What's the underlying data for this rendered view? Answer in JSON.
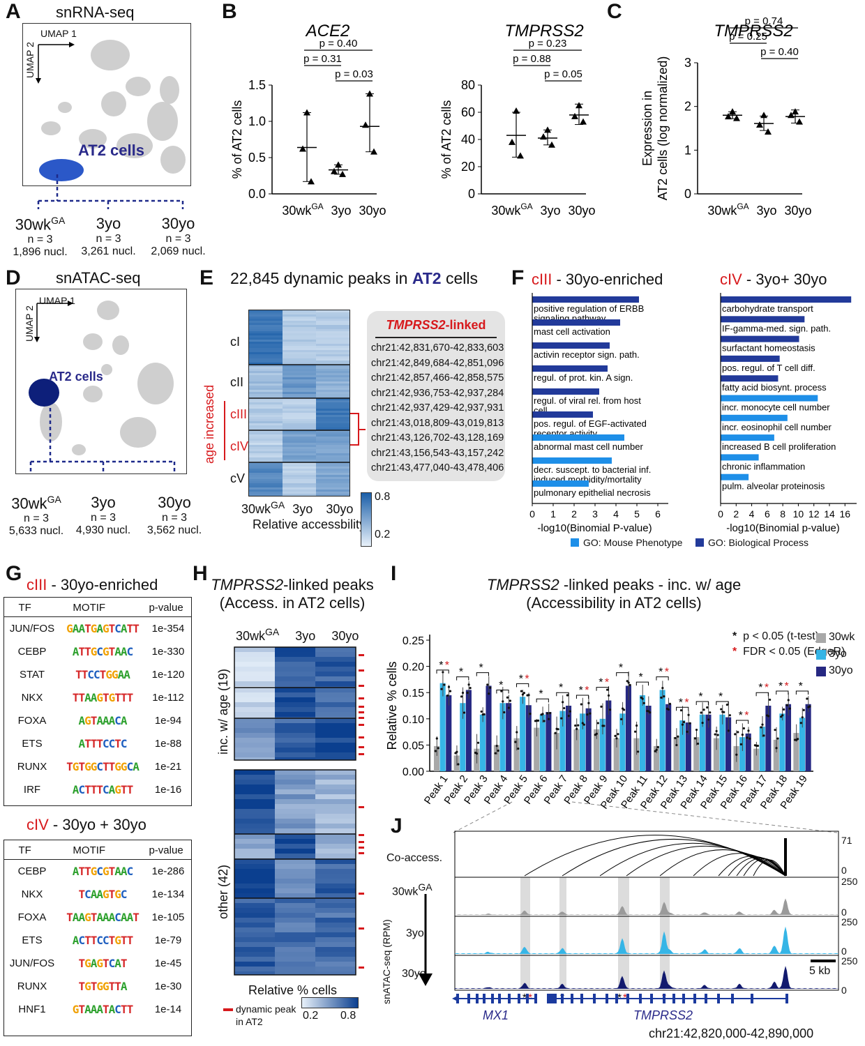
{
  "panels": {
    "A": {
      "label": "A",
      "title": "snRNA-seq",
      "umap1": "UMAP 1",
      "umap2": "UMAP 2",
      "cluster": "AT2 cells",
      "groups": [
        {
          "name": "30wk",
          "sup": "GA",
          "n": "n = 3",
          "nucl": "1,896 nucl."
        },
        {
          "name": "3yo",
          "sup": "",
          "n": "n = 3",
          "nucl": "3,261 nucl."
        },
        {
          "name": "30yo",
          "sup": "",
          "n": "n = 3",
          "nucl": "2,069 nucl."
        }
      ]
    },
    "B": {
      "label": "B"
    },
    "C": {
      "label": "C"
    },
    "D": {
      "label": "D",
      "title": "snATAC-seq",
      "umap1": "UMAP 1",
      "umap2": "UMAP 2",
      "cluster": "AT2 cells",
      "groups": [
        {
          "name": "30wk",
          "sup": "GA",
          "n": "n = 3",
          "nucl": "5,633 nucl."
        },
        {
          "name": "3yo",
          "sup": "",
          "n": "n = 3",
          "nucl": "4,930 nucl."
        },
        {
          "name": "30yo",
          "sup": "",
          "n": "n = 3",
          "nucl": "3,562 nucl."
        }
      ]
    },
    "E": {
      "label": "E",
      "title_pre": "22,845 dynamic peaks in ",
      "title_bold": "AT2",
      "title_post": " cells",
      "clusters": [
        "cI",
        "cII",
        "cIII",
        "cIV",
        "cV"
      ],
      "age_label": "age increased",
      "xlabels": [
        "30wk",
        "3yo",
        "30yo"
      ],
      "xsup": "GA",
      "xlabel": "Relative accessbility",
      "legend": {
        "max": "0.8",
        "min": "0.2"
      },
      "linked_title_gene": "TMPRSS2",
      "linked_title_suffix": "-linked",
      "linked_peaks": [
        "chr21:42,831,670-42,833,603",
        "chr21:42,849,684-42,851,096",
        "chr21:42,857,466-42,858,575",
        "chr21:42,936,753-42,937,284",
        "chr21:42,937,429-42,937,931",
        "chr21:43,018,809-43,019,813",
        "chr21:43,126,702-43,128,169",
        "chr21:43,156,543-43,157,242",
        "chr21:43,477,040-43,478,406"
      ]
    },
    "F": {
      "label": "F",
      "left": {
        "title_red": "cIII",
        "title_rest": " - 30yo-enriched",
        "xlabel": "-log10(Binomial P-value)",
        "terms": [
          {
            "t": "positive regulation of ERBB signaling pathway",
            "v": 5.1,
            "type": "BP"
          },
          {
            "t": "mast cell activation",
            "v": 4.2,
            "type": "BP"
          },
          {
            "t": "activin receptor sign. path.",
            "v": 3.7,
            "type": "BP"
          },
          {
            "t": "regul. of prot. kin. A sign.",
            "v": 3.6,
            "type": "BP"
          },
          {
            "t": "regul. of viral rel. from host cell",
            "v": 3.2,
            "type": "BP"
          },
          {
            "t": "pos. regul. of EGF-activated receptor activity",
            "v": 2.9,
            "type": "BP"
          },
          {
            "t": "abnormal mast cell number",
            "v": 4.4,
            "type": "MP"
          },
          {
            "t": "decr. suscept. to bacterial inf. induced morbidity/mortality",
            "v": 3.8,
            "type": "MP"
          },
          {
            "t": "pulmonary epithelial necrosis",
            "v": 2.7,
            "type": "MP"
          }
        ],
        "ticks": [
          "0",
          "1",
          "2",
          "3",
          "4",
          "5",
          "6"
        ]
      },
      "right": {
        "title_red": "cIV",
        "title_rest": " - 3yo+ 30yo",
        "xlabel": "-log10(Binomial p-value)",
        "terms": [
          {
            "t": "carbohydrate transport",
            "v": 16.8,
            "type": "BP"
          },
          {
            "t": "IF-gamma-med. sign. path.",
            "v": 10.8,
            "type": "BP"
          },
          {
            "t": "surfactant homeostasis",
            "v": 10.1,
            "type": "BP"
          },
          {
            "t": "pos. regul. of T cell diff.",
            "v": 7.6,
            "type": "BP"
          },
          {
            "t": "fatty acid biosynt. process",
            "v": 7.4,
            "type": "BP"
          },
          {
            "t": "incr. monocyte cell number",
            "v": 12.5,
            "type": "MP"
          },
          {
            "t": "incr. eosinophil cell number",
            "v": 8.6,
            "type": "MP"
          },
          {
            "t": "increased B cell proliferation",
            "v": 6.9,
            "type": "MP"
          },
          {
            "t": "chronic inflammation",
            "v": 4.9,
            "type": "MP"
          },
          {
            "t": "pulm. alveolar proteinosis",
            "v": 3.6,
            "type": "MP"
          }
        ],
        "ticks": [
          "0",
          "2",
          "4",
          "6",
          "8",
          "10",
          "12",
          "14",
          "16"
        ]
      },
      "legend": {
        "mp": "GO: Mouse Phenotype",
        "bp": "GO: Biological Process"
      }
    },
    "G": {
      "label": "G",
      "t1_red": "cIII",
      "t1_rest": " - 30yo-enriched",
      "t2_red": "cIV",
      "t2_rest": " - 30yo + 30yo",
      "headers": [
        "TF",
        "MOTIF",
        "p-value"
      ],
      "rows1": [
        {
          "tf": "JUN/FOS",
          "motif": "GAATGAGTCATT",
          "p": "1e-354"
        },
        {
          "tf": "CEBP",
          "motif": "ATTGCGTAAC",
          "p": "1e-330"
        },
        {
          "tf": "STAT",
          "motif": "TTCCTGGAA",
          "p": "1e-120"
        },
        {
          "tf": "NKX",
          "motif": "TTAAGTGTTT",
          "p": "1e-112"
        },
        {
          "tf": "FOXA",
          "motif": "AGTAAACA",
          "p": "1e-94"
        },
        {
          "tf": "ETS",
          "motif": "ATTTCCTC",
          "p": "1e-88"
        },
        {
          "tf": "RUNX",
          "motif": "TGTGGCTTGGCA",
          "p": "1e-21"
        },
        {
          "tf": "IRF",
          "motif": "ACTTTCAGTT",
          "p": "1e-16"
        }
      ],
      "rows2": [
        {
          "tf": "CEBP",
          "motif": "ATTGCGTAAC",
          "p": "1e-286"
        },
        {
          "tf": "NKX",
          "motif": "TCAAGTGC",
          "p": "1e-134"
        },
        {
          "tf": "FOXA",
          "motif": "TAAGTAAACAAT",
          "p": "1e-105"
        },
        {
          "tf": "ETS",
          "motif": "ACTTCCTGTT",
          "p": "1e-79"
        },
        {
          "tf": "JUN/FOS",
          "motif": "TGAGTCAT",
          "p": "1e-45"
        },
        {
          "tf": "RUNX",
          "motif": "TGTGGTTA",
          "p": "1e-30"
        },
        {
          "tf": "HNF1",
          "motif": "GTAAATACTT",
          "p": "1e-14"
        }
      ]
    },
    "H": {
      "label": "H",
      "title_gene": "TMPRSS2",
      "title_rest": "-linked peaks",
      "subtitle": "(Access. in AT2 cells)",
      "cols": [
        "30wk",
        "3yo",
        "30yo"
      ],
      "colsup": "GA",
      "group1": "inc. w/ age (19)",
      "group2": "other (42)",
      "xlabel": "Relative % cells",
      "legend_dyn": "dynamic peak in AT2",
      "legend_min": "0.2",
      "legend_max": "0.8"
    },
    "I": {
      "label": "I",
      "title_gene": "TMPRSS2",
      "title_rest": " -linked peaks - inc. w/ age",
      "subtitle": "(Accessibility in AT2 cells)",
      "ylabel": "Relative % cells",
      "legend": {
        "ttest": "p < 0.05 (t-test)",
        "fdr": "FDR < 0.05 (EdgeR)",
        "s1": "30wk",
        "s2": "3yo",
        "s3": "30yo"
      }
    },
    "J": {
      "label": "J",
      "coaccess": "Co-access.",
      "ylabel": "snATAC-seq (RPM)",
      "tracks": [
        "30wk",
        "3yo",
        "30yo"
      ],
      "tracksup": "GA",
      "scale_top": "71",
      "scale_zero": "0",
      "scale_max": "250",
      "scalebar": "5 kb",
      "gene1": "MX1",
      "gene2": "TMPRSS2",
      "coords": "chr21:42,820,000-42,890,000"
    }
  },
  "chart_data": [
    {
      "type": "scatter",
      "title": "ACE2",
      "ylabel": "% of AT2 cells",
      "categories": [
        "30wkGA",
        "3yo",
        "30yo"
      ],
      "ylim": [
        0,
        1.5
      ],
      "points": [
        [
          1.12,
          0.62,
          0.17
        ],
        [
          0.4,
          0.31,
          0.27
        ],
        [
          1.38,
          0.95,
          0.58
        ]
      ],
      "means": [
        0.64,
        0.33,
        0.93
      ],
      "sd_low": [
        0.17,
        0.27,
        0.58
      ],
      "sd_high": [
        1.12,
        0.4,
        1.38
      ],
      "pvalues": [
        {
          "a": 0,
          "b": 1,
          "p": "p = 0.31"
        },
        {
          "a": 0,
          "b": 2,
          "p": "p = 0.40"
        },
        {
          "a": 1,
          "b": 2,
          "p": "p = 0.03"
        }
      ]
    },
    {
      "type": "scatter",
      "title": "TMPRSS2",
      "ylabel": "% of AT2 cells",
      "categories": [
        "30wkGA",
        "3yo",
        "30yo"
      ],
      "ylim": [
        0,
        80
      ],
      "points": [
        [
          61,
          38,
          28
        ],
        [
          47,
          42,
          36
        ],
        [
          65,
          57,
          53
        ]
      ],
      "means": [
        43,
        41,
        58
      ],
      "sd_low": [
        27,
        36,
        51
      ],
      "sd_high": [
        60,
        47,
        66
      ],
      "pvalues": [
        {
          "a": 0,
          "b": 1,
          "p": "p = 0.88"
        },
        {
          "a": 0,
          "b": 2,
          "p": "p = 0.23"
        },
        {
          "a": 1,
          "b": 2,
          "p": "p = 0.05"
        }
      ]
    },
    {
      "type": "scatter",
      "title": "TMPRSS2",
      "ylabel": "Expression in AT2 cells (log normalized)",
      "categories": [
        "30wkGA",
        "3yo",
        "30yo"
      ],
      "ylim": [
        0,
        3
      ],
      "points": [
        [
          1.88,
          1.77,
          1.73
        ],
        [
          1.8,
          1.58,
          1.42
        ],
        [
          1.88,
          1.8,
          1.65
        ]
      ],
      "means": [
        1.8,
        1.61,
        1.77
      ],
      "sd_low": [
        1.72,
        1.45,
        1.62
      ],
      "sd_high": [
        1.88,
        1.78,
        1.92
      ],
      "pvalues": [
        {
          "a": 0,
          "b": 1,
          "p": "p = 0.25"
        },
        {
          "a": 0,
          "b": 2,
          "p": "p = 0.74"
        },
        {
          "a": 1,
          "b": 2,
          "p": "p = 0.40"
        }
      ]
    },
    {
      "type": "bar",
      "title": "TMPRSS2 -linked peaks - inc. w/ age",
      "ylabel": "Relative % cells",
      "ylim": [
        0,
        0.25
      ],
      "categories": [
        "Peak 1",
        "Peak 2",
        "Peak 3",
        "Peak 4",
        "Peak 5",
        "Peak 6",
        "Peak 7",
        "Peak 8",
        "Peak 9",
        "Peak 10",
        "Peak 11",
        "Peak 12",
        "Peak 13",
        "Peak 14",
        "Peak 15",
        "Peak 16",
        "Peak 17",
        "Peak 18",
        "Peak 19"
      ],
      "series": [
        {
          "name": "30wk",
          "color": "#a8a8a8",
          "values": [
            0.048,
            0.03,
            0.043,
            0.05,
            0.063,
            0.083,
            0.073,
            0.08,
            0.08,
            0.063,
            0.063,
            0.048,
            0.065,
            0.065,
            0.063,
            0.048,
            0.043,
            0.06,
            0.073
          ]
        },
        {
          "name": "3yo",
          "color": "#36b5e6",
          "values": [
            0.168,
            0.13,
            0.108,
            0.13,
            0.142,
            0.108,
            0.115,
            0.11,
            0.1,
            0.11,
            0.145,
            0.155,
            0.097,
            0.108,
            0.108,
            0.065,
            0.085,
            0.11,
            0.102
          ]
        },
        {
          "name": "30yo",
          "color": "#262882",
          "values": [
            0.145,
            0.155,
            0.163,
            0.13,
            0.126,
            0.113,
            0.125,
            0.12,
            0.135,
            0.163,
            0.125,
            0.128,
            0.093,
            0.108,
            0.103,
            0.072,
            0.125,
            0.128,
            0.128
          ]
        }
      ],
      "ticks": [
        "0.00",
        "0.05",
        "0.10",
        "0.15",
        "0.20",
        "0.25"
      ]
    }
  ],
  "colors": {
    "bp": "#223a9a",
    "mp": "#1e8fe8",
    "red": "#d7191c",
    "navy": "#262882",
    "gray": "#a8a8a8",
    "cyan": "#36b5e6"
  }
}
